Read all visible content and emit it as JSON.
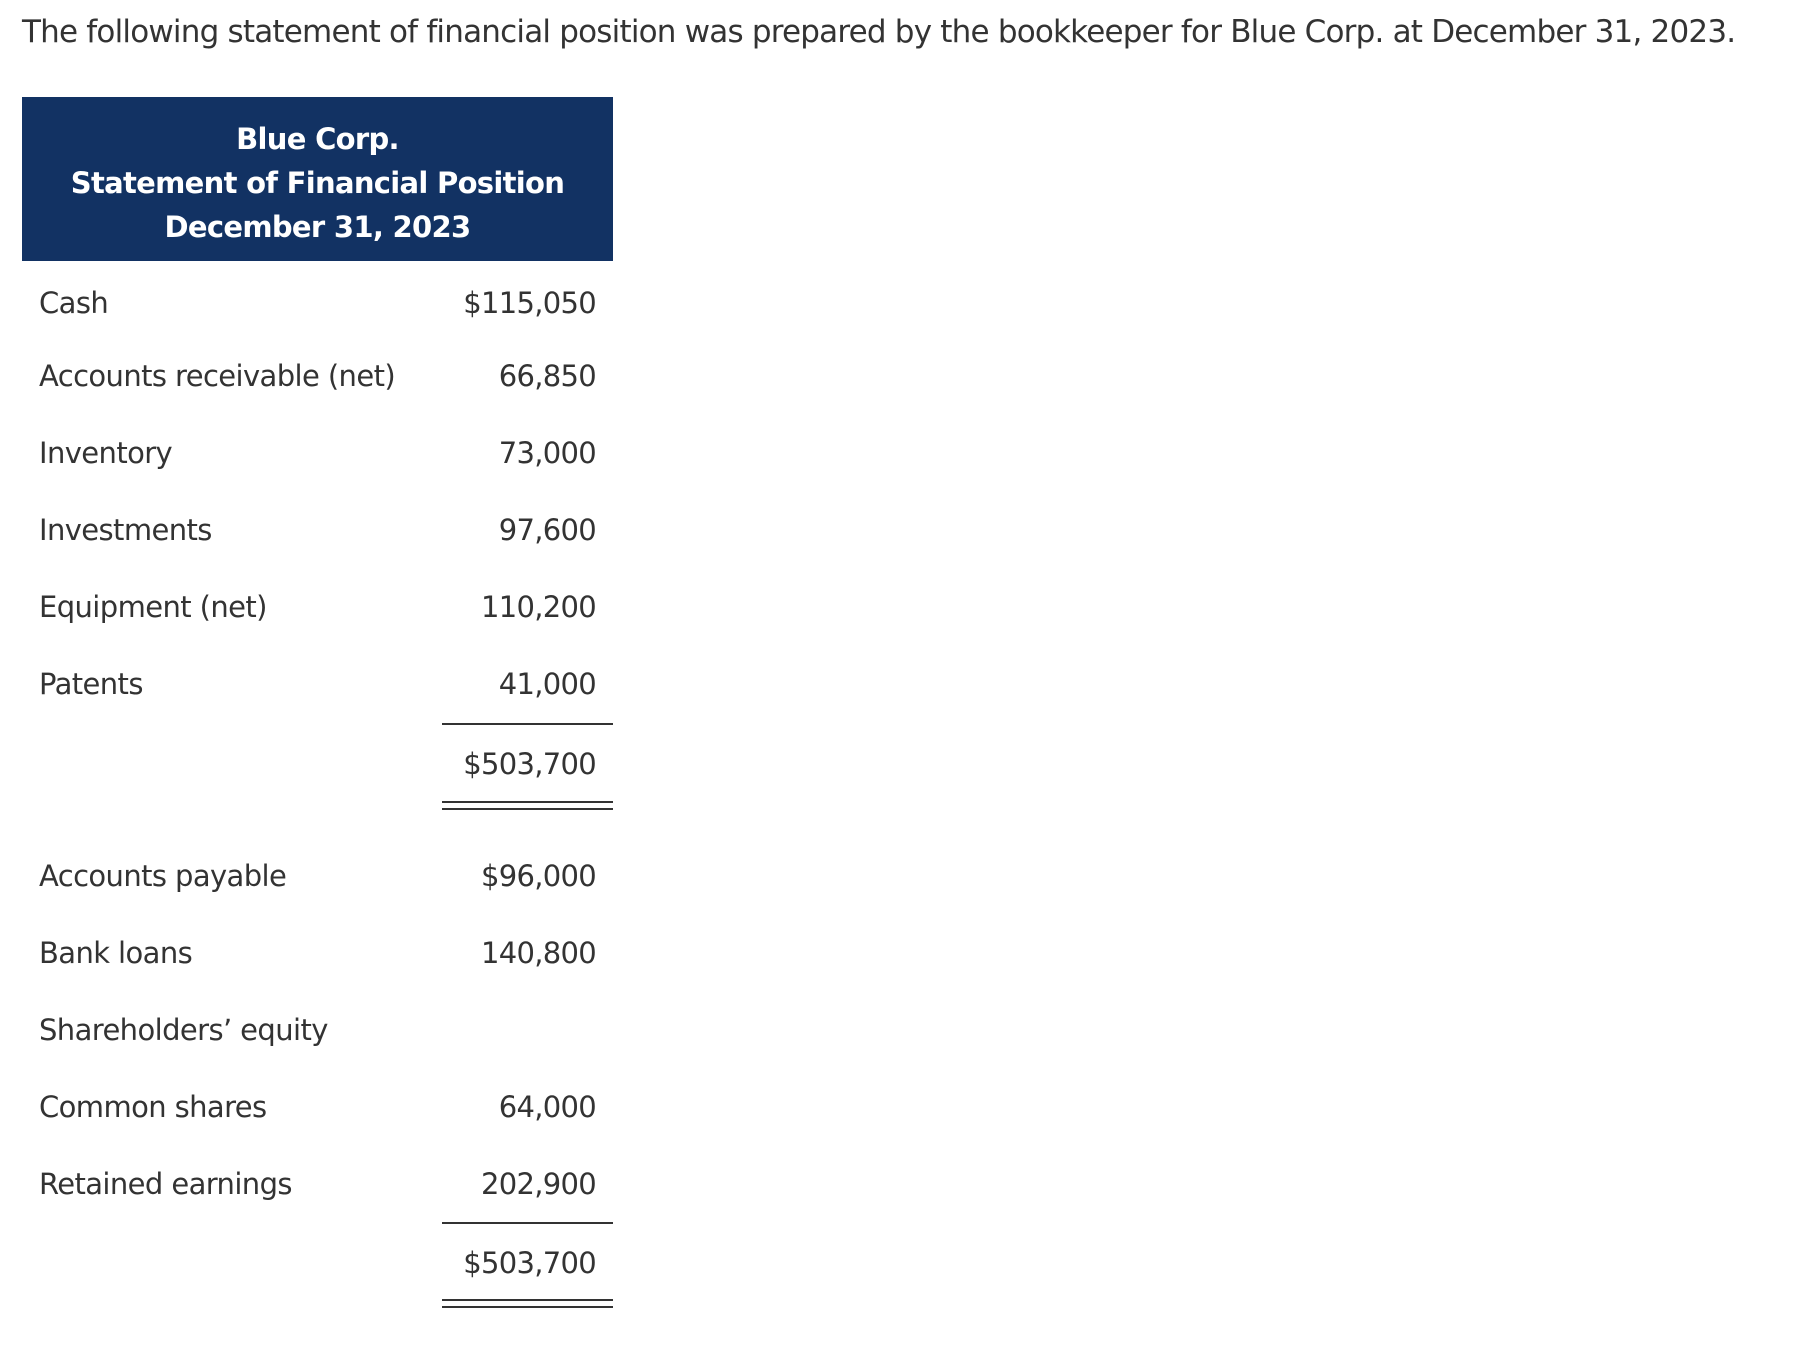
{
  "intro": "The following statement of financial position was prepared by the bookkeeper for Blue Corp. at December 31, 2023.",
  "statement": {
    "company": "Blue Corp.",
    "title": "Statement of Financial Position",
    "date": "December 31, 2023",
    "assets": [
      {
        "label": "Cash",
        "amount": "$115,050"
      },
      {
        "label": "Accounts receivable (net)",
        "amount": "66,850"
      },
      {
        "label": "Inventory",
        "amount": "73,000"
      },
      {
        "label": "Investments",
        "amount": "97,600"
      },
      {
        "label": "Equipment (net)",
        "amount": "110,200"
      },
      {
        "label": "Patents",
        "amount": "41,000"
      }
    ],
    "assets_total": "$503,700",
    "liabilities_equity": [
      {
        "label": "Accounts payable",
        "amount": "$96,000"
      },
      {
        "label": "Bank loans",
        "amount": "140,800"
      },
      {
        "label": "Shareholders’ equity",
        "amount": ""
      },
      {
        "label": "Common shares",
        "amount": "64,000"
      },
      {
        "label": "Retained earnings",
        "amount": "202,900"
      }
    ],
    "liabilities_equity_total": "$503,700"
  }
}
